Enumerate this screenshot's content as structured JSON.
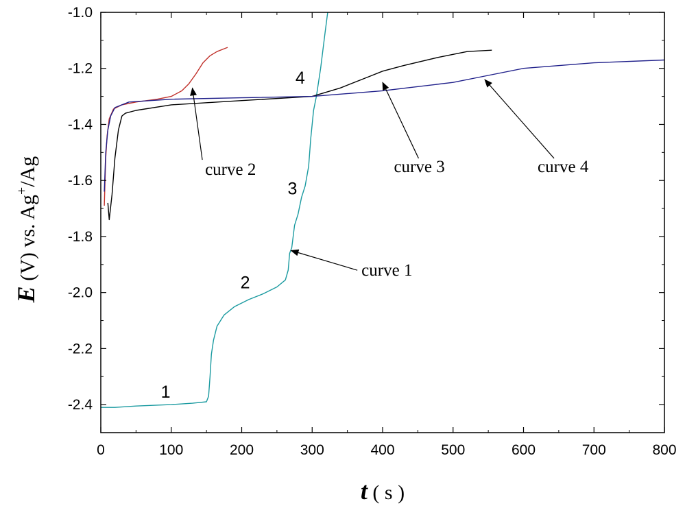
{
  "chart_data": {
    "type": "line",
    "xlabel": {
      "symbol": "t",
      "rest": " ( s )"
    },
    "ylabel": {
      "symbol": "E",
      "rest": " (V) vs. Ag",
      "sup": "+",
      "tail": "/Ag"
    },
    "xlim": [
      0,
      800
    ],
    "ylim": [
      -2.5,
      -1.0
    ],
    "xticks": [
      0,
      100,
      200,
      300,
      400,
      500,
      600,
      700,
      800
    ],
    "yticks": [
      -2.4,
      -2.2,
      -2.0,
      -1.8,
      -1.6,
      -1.4,
      -1.2,
      -1.0
    ],
    "xtick_labels": [
      "0",
      "100",
      "200",
      "300",
      "400",
      "500",
      "600",
      "700",
      "800"
    ],
    "ytick_labels": [
      "-2.4",
      "-2.2",
      "-2.0",
      "-1.8",
      "-1.6",
      "-1.4",
      "-1.2",
      "-1.0"
    ],
    "grid": false,
    "legend": "none",
    "series": [
      {
        "id": "curve-1",
        "color": "#1a9aa0",
        "x": [
          0,
          20,
          50,
          100,
          130,
          150,
          153,
          155,
          157,
          160,
          165,
          175,
          190,
          210,
          230,
          250,
          262,
          266,
          268,
          271,
          275,
          280,
          285,
          290,
          295,
          298,
          302,
          306,
          312,
          318,
          322
        ],
        "y": [
          -2.41,
          -2.41,
          -2.405,
          -2.4,
          -2.395,
          -2.39,
          -2.37,
          -2.3,
          -2.22,
          -2.17,
          -2.12,
          -2.08,
          -2.05,
          -2.025,
          -2.005,
          -1.98,
          -1.955,
          -1.92,
          -1.86,
          -1.84,
          -1.76,
          -1.72,
          -1.66,
          -1.62,
          -1.55,
          -1.45,
          -1.35,
          -1.3,
          -1.2,
          -1.08,
          -1.0
        ]
      },
      {
        "id": "curve-2",
        "color": "#c0302a",
        "x": [
          5,
          7,
          9,
          12,
          18,
          30,
          50,
          80,
          100,
          115,
          125,
          135,
          145,
          155,
          165,
          175,
          180
        ],
        "y": [
          -1.69,
          -1.52,
          -1.44,
          -1.38,
          -1.345,
          -1.33,
          -1.32,
          -1.31,
          -1.3,
          -1.28,
          -1.255,
          -1.22,
          -1.18,
          -1.155,
          -1.14,
          -1.13,
          -1.125
        ]
      },
      {
        "id": "curve-3",
        "color": "#000000",
        "x": [
          10,
          12,
          16,
          20,
          25,
          30,
          35,
          50,
          100,
          200,
          300,
          340,
          380,
          400,
          430,
          480,
          520,
          555
        ],
        "y": [
          -1.68,
          -1.74,
          -1.65,
          -1.52,
          -1.42,
          -1.37,
          -1.36,
          -1.35,
          -1.33,
          -1.315,
          -1.3,
          -1.27,
          -1.23,
          -1.21,
          -1.19,
          -1.16,
          -1.14,
          -1.135
        ]
      },
      {
        "id": "curve-4",
        "color": "#1f1f8a",
        "x": [
          5,
          7,
          10,
          14,
          20,
          40,
          100,
          200,
          300,
          400,
          500,
          540,
          600,
          700,
          800
        ],
        "y": [
          -1.64,
          -1.5,
          -1.42,
          -1.37,
          -1.34,
          -1.32,
          -1.31,
          -1.305,
          -1.3,
          -1.28,
          -1.25,
          -1.23,
          -1.2,
          -1.18,
          -1.17
        ]
      }
    ],
    "annotations": [
      {
        "id": "curve-1",
        "text": "curve 1",
        "label_x": 370,
        "label_y": -1.94,
        "arrow_to_x": 270,
        "arrow_to_y": -1.85
      },
      {
        "id": "curve-2",
        "text": "curve 2",
        "label_x": 148,
        "label_y": -1.58,
        "arrow_to_x": 130,
        "arrow_to_y": -1.27
      },
      {
        "id": "curve-3",
        "text": "curve 3",
        "label_x": 416,
        "label_y": -1.57,
        "arrow_to_x": 400,
        "arrow_to_y": -1.25
      },
      {
        "id": "curve-4",
        "text": "curve 4",
        "label_x": 620,
        "label_y": -1.57,
        "arrow_to_x": 545,
        "arrow_to_y": -1.24
      }
    ],
    "point_labels": [
      {
        "text": "1",
        "x": 92,
        "y": -2.375
      },
      {
        "text": "2",
        "x": 205,
        "y": -1.985
      },
      {
        "text": "3",
        "x": 272,
        "y": -1.65
      },
      {
        "text": "4",
        "x": 283,
        "y": -1.255
      }
    ]
  }
}
